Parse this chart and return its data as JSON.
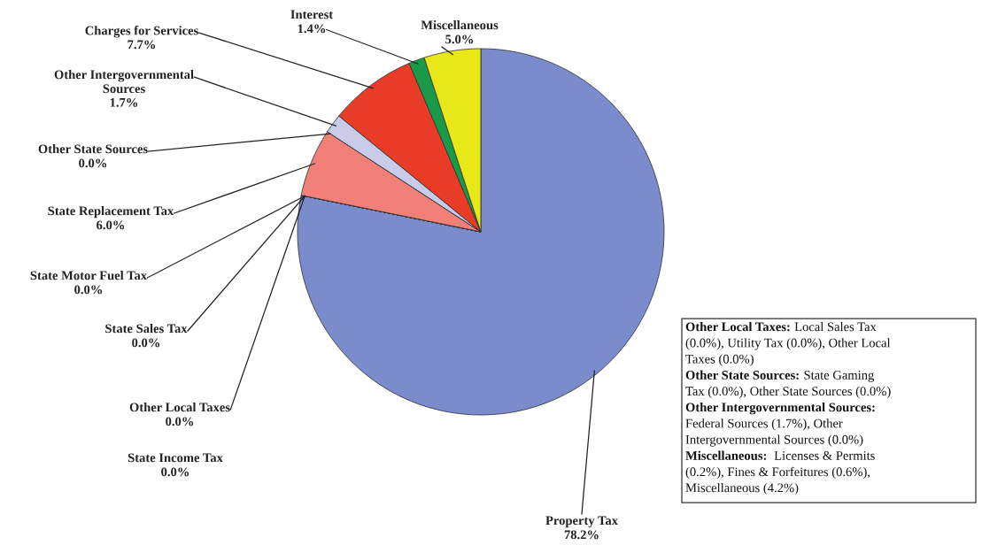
{
  "chart_data": {
    "type": "pie",
    "categories": [
      "Property Tax",
      "State Income Tax",
      "Other Local Taxes",
      "State Sales Tax",
      "State Motor Fuel Tax",
      "State Replacement Tax",
      "Other State Sources",
      "Other Intergovernmental Sources",
      "Charges for Services",
      "Interest",
      "Miscellaneous"
    ],
    "values": [
      78.2,
      0.0,
      0.0,
      0.0,
      0.0,
      6.0,
      0.0,
      1.7,
      7.7,
      1.4,
      5.0
    ],
    "value_labels": [
      "78.2%",
      "0.0%",
      "0.0%",
      "0.0%",
      "0.0%",
      "6.0%",
      "0.0%",
      "1.7%",
      "7.7%",
      "1.4%",
      "5.0%"
    ],
    "colors": [
      "#7b8ccc",
      "#9aa4d8",
      "#b0b8e0",
      "#a0c0e0",
      "#d0a0a0",
      "#f08078",
      "#d8d8ec",
      "#c8cce8",
      "#e83c28",
      "#1a9a48",
      "#e8e818"
    ],
    "annotations": [
      "Other Local Taxes: Local Sales Tax\n(0.0%), Utility Tax (0.0%), Other Local\nTaxes (0.0%)",
      "Other State Sources: State Gaming\nTax (0.0%), Other State Sources (0.0%)",
      "Other Intergovernmental Sources:\nFederal Sources (1.7%), Other\nIntergovernmental Sources (0.0%)",
      "Miscellaneous:  Licenses & Permits\n(0.2%), Fines & Forfeitures (0.6%),\nMiscellaneous (4.2%)"
    ]
  }
}
